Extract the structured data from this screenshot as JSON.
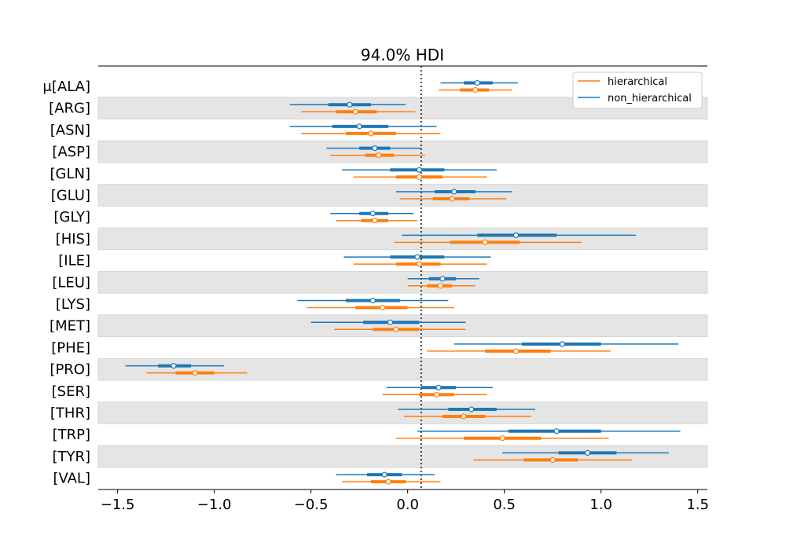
{
  "chart_data": {
    "type": "forest",
    "title": "94.0% HDI",
    "xlim": [
      -1.6,
      1.55
    ],
    "xticks": [
      -1.5,
      -1.0,
      -0.5,
      0.0,
      0.5,
      1.0,
      1.5
    ],
    "xtick_labels": [
      "−1.5",
      "−1.0",
      "−0.5",
      "0.0",
      "0.5",
      "1.0",
      "1.5"
    ],
    "reference_line_x": 0.07,
    "categories": [
      "μ[ALA]",
      "[ARG]",
      "[ASN]",
      "[ASP]",
      "[GLN]",
      "[GLU]",
      "[GLY]",
      "[HIS]",
      "[ILE]",
      "[LEU]",
      "[LYS]",
      "[MET]",
      "[PHE]",
      "[PRO]",
      "[SER]",
      "[THR]",
      "[TRP]",
      "[TYR]",
      "[VAL]"
    ],
    "legend": {
      "position": "top-right",
      "entries": [
        "hierarchical",
        "non_hierarchical"
      ]
    },
    "series": [
      {
        "name": "non_hierarchical",
        "color": "#1f77b4",
        "intervals": [
          {
            "lo": 0.17,
            "q1": 0.29,
            "mid": 0.36,
            "q3": 0.44,
            "hi": 0.57
          },
          {
            "lo": -0.61,
            "q1": -0.41,
            "mid": -0.3,
            "q3": -0.19,
            "hi": -0.01
          },
          {
            "lo": -0.61,
            "q1": -0.39,
            "mid": -0.25,
            "q3": -0.1,
            "hi": 0.15
          },
          {
            "lo": -0.42,
            "q1": -0.25,
            "mid": -0.17,
            "q3": -0.09,
            "hi": 0.07
          },
          {
            "lo": -0.34,
            "q1": -0.09,
            "mid": 0.06,
            "q3": 0.19,
            "hi": 0.46
          },
          {
            "lo": -0.06,
            "q1": 0.14,
            "mid": 0.24,
            "q3": 0.35,
            "hi": 0.54
          },
          {
            "lo": -0.4,
            "q1": -0.25,
            "mid": -0.18,
            "q3": -0.1,
            "hi": 0.03
          },
          {
            "lo": -0.03,
            "q1": 0.36,
            "mid": 0.56,
            "q3": 0.77,
            "hi": 1.18
          },
          {
            "lo": -0.33,
            "q1": -0.09,
            "mid": 0.05,
            "q3": 0.19,
            "hi": 0.43
          },
          {
            "lo": 0.0,
            "q1": 0.11,
            "mid": 0.18,
            "q3": 0.25,
            "hi": 0.37
          },
          {
            "lo": -0.57,
            "q1": -0.32,
            "mid": -0.18,
            "q3": -0.04,
            "hi": 0.21
          },
          {
            "lo": -0.5,
            "q1": -0.23,
            "mid": -0.09,
            "q3": 0.06,
            "hi": 0.3
          },
          {
            "lo": 0.24,
            "q1": 0.59,
            "mid": 0.8,
            "q3": 1.0,
            "hi": 1.4
          },
          {
            "lo": -1.46,
            "q1": -1.29,
            "mid": -1.21,
            "q3": -1.12,
            "hi": -0.95
          },
          {
            "lo": -0.11,
            "q1": 0.07,
            "mid": 0.16,
            "q3": 0.25,
            "hi": 0.44
          },
          {
            "lo": -0.05,
            "q1": 0.21,
            "mid": 0.33,
            "q3": 0.46,
            "hi": 0.66
          },
          {
            "lo": 0.05,
            "q1": 0.52,
            "mid": 0.77,
            "q3": 1.0,
            "hi": 1.41
          },
          {
            "lo": 0.49,
            "q1": 0.78,
            "mid": 0.93,
            "q3": 1.08,
            "hi": 1.35
          },
          {
            "lo": -0.37,
            "q1": -0.21,
            "mid": -0.12,
            "q3": -0.03,
            "hi": 0.14
          }
        ]
      },
      {
        "name": "hierarchical",
        "color": "#ff7f0e",
        "intervals": [
          {
            "lo": 0.16,
            "q1": 0.27,
            "mid": 0.35,
            "q3": 0.42,
            "hi": 0.54
          },
          {
            "lo": -0.55,
            "q1": -0.37,
            "mid": -0.27,
            "q3": -0.16,
            "hi": 0.04
          },
          {
            "lo": -0.55,
            "q1": -0.32,
            "mid": -0.19,
            "q3": -0.06,
            "hi": 0.17
          },
          {
            "lo": -0.4,
            "q1": -0.22,
            "mid": -0.15,
            "q3": -0.07,
            "hi": 0.09
          },
          {
            "lo": -0.28,
            "q1": -0.06,
            "mid": 0.06,
            "q3": 0.18,
            "hi": 0.41
          },
          {
            "lo": -0.04,
            "q1": 0.13,
            "mid": 0.23,
            "q3": 0.32,
            "hi": 0.51
          },
          {
            "lo": -0.37,
            "q1": -0.24,
            "mid": -0.17,
            "q3": -0.1,
            "hi": 0.05
          },
          {
            "lo": -0.07,
            "q1": 0.22,
            "mid": 0.4,
            "q3": 0.58,
            "hi": 0.9
          },
          {
            "lo": -0.28,
            "q1": -0.06,
            "mid": 0.06,
            "q3": 0.17,
            "hi": 0.41
          },
          {
            "lo": 0.0,
            "q1": 0.1,
            "mid": 0.17,
            "q3": 0.23,
            "hi": 0.35
          },
          {
            "lo": -0.52,
            "q1": -0.27,
            "mid": -0.13,
            "q3": 0.0,
            "hi": 0.24
          },
          {
            "lo": -0.38,
            "q1": -0.18,
            "mid": -0.06,
            "q3": 0.06,
            "hi": 0.3
          },
          {
            "lo": 0.1,
            "q1": 0.4,
            "mid": 0.56,
            "q3": 0.74,
            "hi": 1.05
          },
          {
            "lo": -1.35,
            "q1": -1.2,
            "mid": -1.1,
            "q3": -1.0,
            "hi": -0.83
          },
          {
            "lo": -0.13,
            "q1": 0.06,
            "mid": 0.15,
            "q3": 0.24,
            "hi": 0.41
          },
          {
            "lo": -0.02,
            "q1": 0.18,
            "mid": 0.29,
            "q3": 0.4,
            "hi": 0.64
          },
          {
            "lo": -0.06,
            "q1": 0.29,
            "mid": 0.49,
            "q3": 0.69,
            "hi": 1.04
          },
          {
            "lo": 0.34,
            "q1": 0.6,
            "mid": 0.75,
            "q3": 0.88,
            "hi": 1.16
          },
          {
            "lo": -0.34,
            "q1": -0.19,
            "mid": -0.1,
            "q3": -0.01,
            "hi": 0.17
          }
        ]
      }
    ]
  }
}
